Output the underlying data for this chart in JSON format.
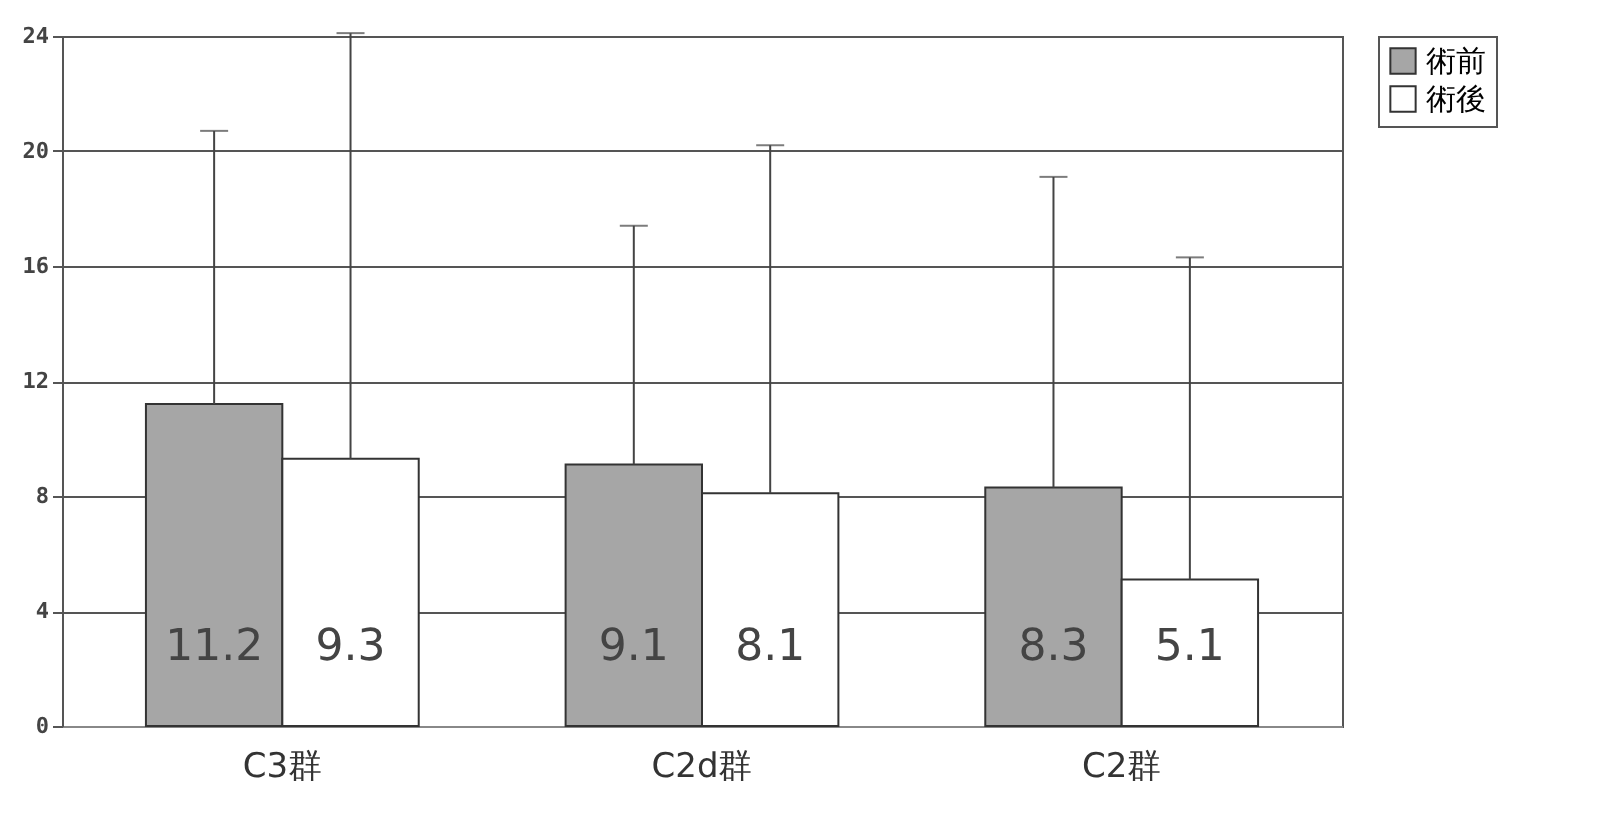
{
  "chart_data": {
    "type": "bar",
    "categories": [
      "C3群",
      "C2d群",
      "C2群"
    ],
    "series": [
      {
        "name": "術前",
        "color": "#a6a6a6",
        "values": [
          11.2,
          9.1,
          8.3
        ],
        "errors": [
          [
            11.2,
            20.7
          ],
          [
            9.1,
            17.4
          ],
          [
            8.3,
            19.1
          ]
        ]
      },
      {
        "name": "術後",
        "color": "#ffffff",
        "values": [
          9.3,
          8.1,
          5.1
        ],
        "errors": [
          [
            9.3,
            24.1
          ],
          [
            8.1,
            20.2
          ],
          [
            5.1,
            16.3
          ]
        ]
      }
    ],
    "ylim": [
      0,
      24
    ],
    "yticks": [
      0,
      4,
      8,
      12,
      16,
      20,
      24
    ],
    "grid": "y",
    "legend": "right",
    "data_labels": true
  }
}
